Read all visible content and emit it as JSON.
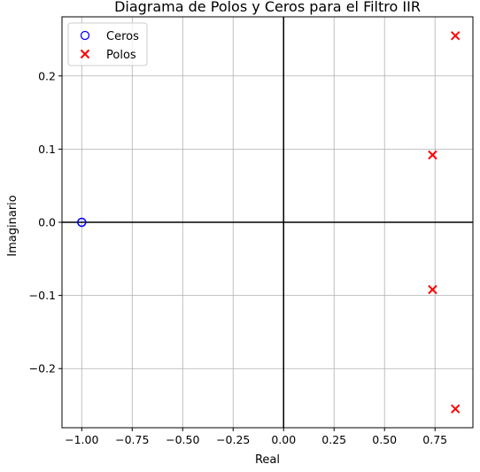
{
  "chart_data": {
    "type": "scatter",
    "title": "Diagrama de Polos y Ceros para el Filtro IIR",
    "xlabel": "Real",
    "ylabel": "Imaginario",
    "xlim": [
      -1.0978,
      0.9378
    ],
    "ylim": [
      -0.2808,
      0.2808
    ],
    "xticks": [
      -1.0,
      -0.75,
      -0.5,
      -0.25,
      0.0,
      0.25,
      0.5,
      0.75
    ],
    "xtick_labels": [
      "−1.00",
      "−0.75",
      "−0.50",
      "−0.25",
      "0.00",
      "0.25",
      "0.50",
      "0.75"
    ],
    "yticks": [
      -0.2,
      -0.1,
      0.0,
      0.1,
      0.2
    ],
    "ytick_labels": [
      "−0.2",
      "−0.1",
      "0.0",
      "0.1",
      "0.2"
    ],
    "grid": true,
    "legend_position": "upper-left",
    "reference_lines": {
      "x": 0,
      "y": 0,
      "color": "#000000"
    },
    "series": [
      {
        "name": "Ceros",
        "marker": "circle-open",
        "color": "#0000ff",
        "points": [
          [
            -1.0,
            0.0
          ],
          [
            -1.0,
            0.0
          ],
          [
            -1.0,
            0.0
          ],
          [
            -1.0,
            0.0
          ]
        ]
      },
      {
        "name": "Polos",
        "marker": "x",
        "color": "#ff0000",
        "points": [
          [
            0.851,
            0.255
          ],
          [
            0.738,
            0.092
          ],
          [
            0.738,
            -0.092
          ],
          [
            0.851,
            -0.255
          ]
        ]
      }
    ]
  }
}
